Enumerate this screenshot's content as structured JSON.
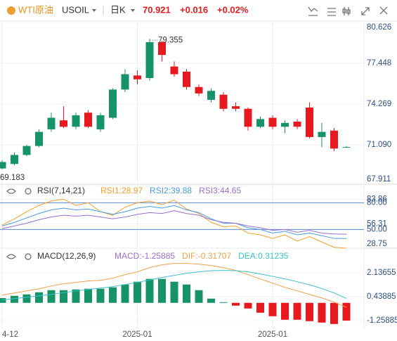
{
  "header": {
    "name": "WTI原油",
    "symbol": "USOIL",
    "period": "日K",
    "price": "70.921",
    "change": "+0.016",
    "change_pct": "+0.02%"
  },
  "chart_data": [
    {
      "type": "candlestick",
      "categories": [
        "4-12",
        null,
        null,
        null,
        null,
        null,
        null,
        null,
        null,
        null,
        null,
        "2025-01",
        null,
        null,
        null,
        null,
        null,
        null,
        null,
        null,
        null,
        null,
        "2025-01",
        null,
        null,
        null,
        null,
        null,
        null
      ],
      "open": [
        69.25,
        69.6,
        70.3,
        71.0,
        72.3,
        73.0,
        72.5,
        73.6,
        72.3,
        73.2,
        75.4,
        76.5,
        76.3,
        79.1,
        77.2,
        76.8,
        75.6,
        74.6,
        75.0,
        74.1,
        73.9,
        72.5,
        73.2,
        72.5,
        72.9,
        74.0,
        71.7,
        72.2,
        70.905
      ],
      "high": [
        69.9,
        70.5,
        71.1,
        72.3,
        73.6,
        74.1,
        73.6,
        73.8,
        73.6,
        75.5,
        77.0,
        76.9,
        79.355,
        79.2,
        77.6,
        77.0,
        75.8,
        75.5,
        75.2,
        74.4,
        74.0,
        73.3,
        73.4,
        73.0,
        73.1,
        74.4,
        72.8,
        72.4,
        71.0
      ],
      "low": [
        69.183,
        69.5,
        70.2,
        70.9,
        72.1,
        72.4,
        72.3,
        72.4,
        72.1,
        73.1,
        75.2,
        75.8,
        76.1,
        77.6,
        76.4,
        75.4,
        74.9,
        74.4,
        73.7,
        73.7,
        72.2,
        72.4,
        72.3,
        72.0,
        72.3,
        71.6,
        70.9,
        70.6,
        70.85
      ],
      "close": [
        69.75,
        70.3,
        71.0,
        72.1,
        73.2,
        72.5,
        73.4,
        72.5,
        73.4,
        75.4,
        76.6,
        76.2,
        79.1,
        78.1,
        76.6,
        75.6,
        75.1,
        75.3,
        73.9,
        73.9,
        72.5,
        73.1,
        72.5,
        72.8,
        72.5,
        71.7,
        72.1,
        70.8,
        70.921
      ],
      "high_label": "79.355",
      "low_label": "69.183",
      "up_color": "#17936a",
      "down_color": "#e8191e",
      "ylim": [
        68.02,
        80.74
      ],
      "yticks": [
        80.626,
        77.448,
        74.269,
        {
          "value": 71.09,
          "label": "71.090"
        },
        67.911
      ]
    },
    {
      "type": "line",
      "title": "RSI(7,14,21)",
      "ylim": [
        28.2,
        98.5
      ],
      "yticks": [
        {
          "value": 80,
          "label": "80.00"
        },
        83.86,
        56.31,
        {
          "value": 50,
          "label": "50.00"
        },
        28.75
      ],
      "levels": [
        80,
        50
      ],
      "series": [
        {
          "name": "RSI1:28.97",
          "color": "#f5a02a",
          "values": [
            55,
            62,
            70,
            77,
            82,
            84,
            77,
            80,
            70,
            66,
            75,
            80,
            82,
            78,
            83,
            73,
            68,
            58,
            53,
            54,
            46,
            44,
            40,
            44,
            37,
            42,
            36,
            30,
            28.97
          ]
        },
        {
          "name": "RSI2:39.88",
          "color": "#4a9be2",
          "values": [
            54,
            58,
            63,
            68,
            72,
            74,
            72,
            73,
            70,
            67,
            70,
            74,
            76,
            74,
            77,
            72,
            69,
            62,
            57,
            57,
            52,
            50,
            46,
            48,
            44,
            46,
            43,
            40,
            39.88
          ]
        },
        {
          "name": "RSI3:44.65",
          "color": "#9b6fd0",
          "values": [
            51,
            54,
            57,
            61,
            64,
            66,
            65,
            66,
            64,
            62,
            64,
            67,
            69,
            68,
            71,
            68,
            66,
            61,
            58,
            57,
            54,
            52,
            49,
            50,
            47,
            49,
            46,
            45,
            44.65
          ]
        }
      ]
    },
    {
      "type": "macd",
      "title": "MACD(12,26,9)",
      "ylim": [
        -1.86,
        3.78
      ],
      "yticks": [
        2.13655,
        0.43885,
        -1.25885
      ],
      "up_color": "#17936a",
      "down_color": "#e8191e",
      "series": [
        {
          "name": "MACD:-1.25885",
          "color": "#9b6fd0",
          "values": [
            0.34,
            0.5,
            0.6,
            0.75,
            0.9,
            0.9,
            0.95,
            1.0,
            1.0,
            1.1,
            1.3,
            1.5,
            1.7,
            1.7,
            1.5,
            1.3,
            0.9,
            0.3,
            0.05,
            -0.2,
            -0.4,
            -0.7,
            -0.95,
            -1.2,
            -1.2,
            -1.3,
            -1.4,
            -1.5,
            -1.25885
          ]
        },
        {
          "name": "DIF:-0.31707",
          "color": "#f0a04b",
          "values": [
            0.55,
            0.7,
            0.85,
            1.0,
            1.2,
            1.35,
            1.45,
            1.55,
            1.6,
            1.75,
            2.0,
            2.2,
            2.5,
            2.7,
            2.8,
            2.8,
            2.75,
            2.65,
            2.5,
            2.3,
            2.0,
            1.7,
            1.4,
            1.1,
            0.85,
            0.6,
            0.35,
            0.05,
            -0.31707
          ]
        },
        {
          "name": "DEA:0.31235",
          "color": "#3bbfce",
          "values": [
            0.2,
            0.3,
            0.4,
            0.5,
            0.6,
            0.72,
            0.85,
            0.95,
            1.05,
            1.15,
            1.3,
            1.45,
            1.62,
            1.8,
            1.95,
            2.1,
            2.2,
            2.28,
            2.3,
            2.28,
            2.2,
            2.05,
            1.88,
            1.7,
            1.5,
            1.28,
            1.02,
            0.7,
            0.31235
          ]
        }
      ]
    }
  ]
}
